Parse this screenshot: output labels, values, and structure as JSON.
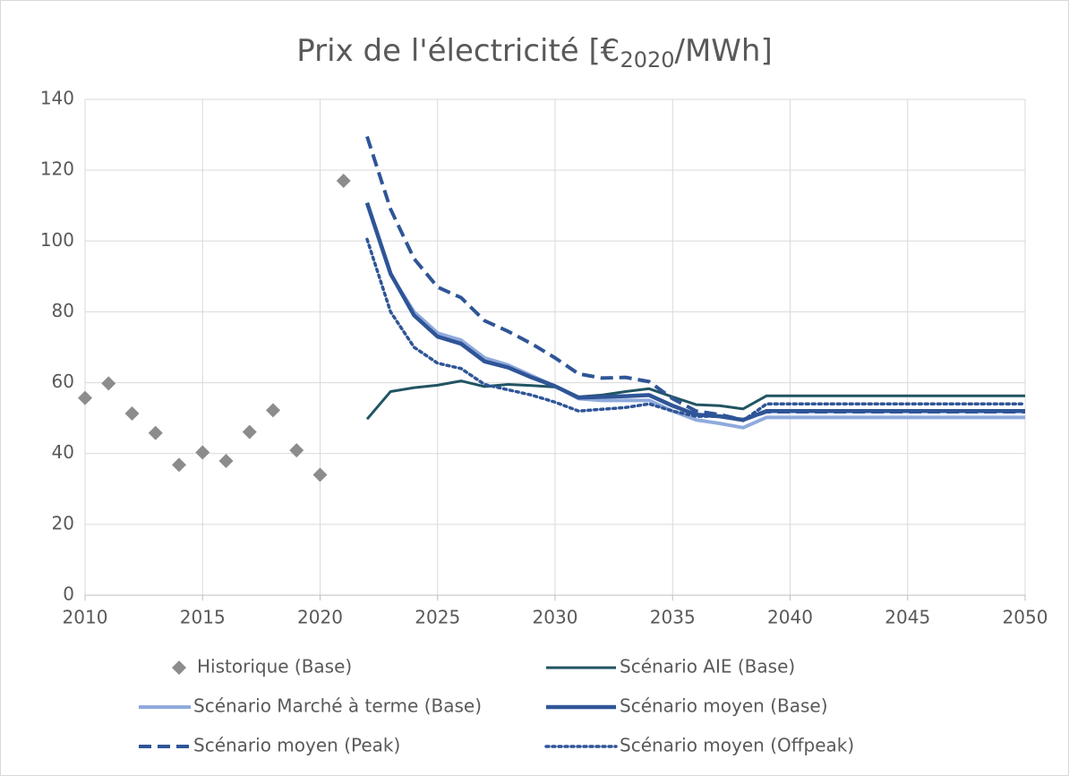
{
  "chart_data": {
    "type": "line",
    "title": [
      "Prix de l'électricité [€",
      "2020",
      "/MWh]"
    ],
    "xlim": [
      2010,
      2050
    ],
    "xticks": [
      2010,
      2015,
      2020,
      2025,
      2030,
      2035,
      2040,
      2045,
      2050
    ],
    "ylim": [
      0,
      140
    ],
    "yticks": [
      0,
      20,
      40,
      60,
      80,
      100,
      120,
      140
    ],
    "grid": true,
    "legend": "bottom",
    "series": [
      {
        "name": "Historique (Base)",
        "color": "#8c8c8c",
        "marker": "diamond",
        "x": [
          2010,
          2011,
          2012,
          2013,
          2014,
          2015,
          2016,
          2017,
          2018,
          2019,
          2020,
          2021
        ],
        "values": [
          55.7,
          59.8,
          51.3,
          45.8,
          36.8,
          40.3,
          37.9,
          46.1,
          52.2,
          40.9,
          34.0,
          117.0
        ]
      },
      {
        "name": "Scénario AIE (Base)",
        "color": "#215462",
        "dash": "solid",
        "width": 3,
        "x": [
          2022,
          2023,
          2024,
          2025,
          2026,
          2027,
          2028,
          2029,
          2030,
          2031,
          2032,
          2033,
          2034,
          2035,
          2036,
          2037,
          2038,
          2039,
          2040,
          2041,
          2042,
          2043,
          2044,
          2045,
          2046,
          2047,
          2048,
          2049,
          2050
        ],
        "values": [
          49.7,
          57.5,
          58.6,
          59.3,
          60.5,
          58.9,
          59.5,
          59.2,
          58.8,
          56,
          56.5,
          57.5,
          58.3,
          56,
          53.8,
          53.5,
          52.6,
          56.3,
          56.3,
          56.3,
          56.3,
          56.3,
          56.3,
          56.3,
          56.3,
          56.3,
          56.3,
          56.3,
          56.3
        ]
      },
      {
        "name": "Scénario Marché à terme (Base)",
        "color": "#8faadc",
        "dash": "solid",
        "width": 4,
        "x": [
          2022,
          2023,
          2024,
          2025,
          2026,
          2027,
          2028,
          2029,
          2030,
          2031,
          2032,
          2033,
          2034,
          2035,
          2036,
          2037,
          2038,
          2039,
          2040,
          2041,
          2042,
          2043,
          2044,
          2045,
          2046,
          2047,
          2048,
          2049,
          2050
        ],
        "values": [
          110.5,
          90.5,
          80,
          74,
          72,
          67,
          65,
          62,
          59,
          55.5,
          55,
          55,
          55,
          52,
          49.5,
          48.5,
          47.3,
          50.2,
          50.2,
          50.2,
          50.2,
          50.2,
          50.2,
          50.2,
          50.2,
          50.2,
          50.2,
          50.2,
          50.2
        ]
      },
      {
        "name": "Scénario moyen (Base)",
        "color": "#2f5597",
        "dash": "solid",
        "width": 4.5,
        "x": [
          2022,
          2023,
          2024,
          2025,
          2026,
          2027,
          2028,
          2029,
          2030,
          2031,
          2032,
          2033,
          2034,
          2035,
          2036,
          2037,
          2038,
          2039,
          2040,
          2041,
          2042,
          2043,
          2044,
          2045,
          2046,
          2047,
          2048,
          2049,
          2050
        ],
        "values": [
          110.8,
          90.8,
          79,
          73,
          71,
          66,
          64.3,
          61.5,
          59,
          55.8,
          56,
          56.2,
          56.5,
          53.5,
          51,
          50.5,
          49.5,
          52,
          52,
          52,
          52,
          52,
          52,
          52,
          52,
          52,
          52,
          52,
          52
        ]
      },
      {
        "name": "Scénario moyen (Peak)",
        "color": "#2f5597",
        "dash": "dashed",
        "width": 4,
        "x": [
          2022,
          2023,
          2024,
          2025,
          2026,
          2027,
          2028,
          2029,
          2030,
          2031,
          2032,
          2033,
          2034,
          2035,
          2036,
          2037,
          2038,
          2039,
          2040,
          2041,
          2042,
          2043,
          2044,
          2045,
          2046,
          2047,
          2048,
          2049,
          2050
        ],
        "values": [
          129.5,
          109,
          95,
          87,
          84,
          77.5,
          74.5,
          71,
          67,
          62.5,
          61.3,
          61.5,
          60.3,
          55.5,
          52,
          51,
          49.5,
          51.8,
          51.8,
          51.8,
          51.8,
          51.8,
          51.8,
          51.8,
          51.8,
          51.8,
          51.8,
          51.8,
          51.8
        ]
      },
      {
        "name": "Scénario moyen (Offpeak)",
        "color": "#2f5597",
        "dash": "dotted",
        "width": 3.5,
        "x": [
          2022,
          2023,
          2024,
          2025,
          2026,
          2027,
          2028,
          2029,
          2030,
          2031,
          2032,
          2033,
          2034,
          2035,
          2036,
          2037,
          2038,
          2039,
          2040,
          2041,
          2042,
          2043,
          2044,
          2045,
          2046,
          2047,
          2048,
          2049,
          2050
        ],
        "values": [
          100.5,
          80,
          70,
          65.5,
          64,
          59.5,
          58,
          56.5,
          54.5,
          52,
          52.5,
          53,
          54,
          52,
          50.5,
          50.5,
          49.3,
          54,
          54,
          54,
          54,
          54,
          54,
          54,
          54,
          54,
          54,
          54,
          54
        ]
      }
    ]
  }
}
